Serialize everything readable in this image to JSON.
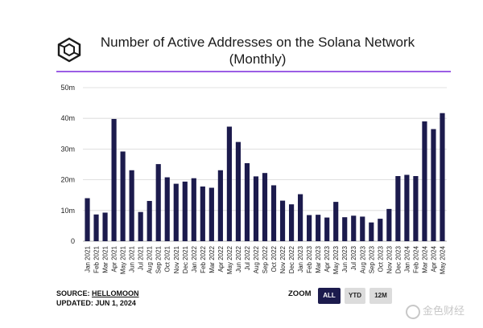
{
  "header": {
    "title_line1": "Number of Active Addresses on the Solana Network",
    "title_line2": "(Monthly)"
  },
  "footer": {
    "source_label": "SOURCE:",
    "source_name": "HELLOMOON",
    "updated_label": "UPDATED: JUN 1, 2024"
  },
  "zoom": {
    "label": "ZOOM",
    "buttons": [
      "ALL",
      "YTD",
      "12M"
    ],
    "active": "ALL"
  },
  "watermark": {
    "text": "金色财经"
  },
  "colors": {
    "bar": "#1c1b4d",
    "accent_rule": "#9b5de5",
    "grid": "#d6d6d6"
  },
  "chart_data": {
    "type": "bar",
    "title": "Number of Active Addresses on the Solana Network (Monthly)",
    "xlabel": "",
    "ylabel": "",
    "ylim": [
      0,
      50
    ],
    "y_ticks": [
      0,
      10,
      20,
      30,
      40,
      50
    ],
    "y_tick_labels": [
      "0",
      "10m",
      "20m",
      "30m",
      "40m",
      "50m"
    ],
    "grid": true,
    "categories": [
      "Jan 2021",
      "Feb 2021",
      "Mar 2021",
      "Apr 2021",
      "May 2021",
      "Jun 2021",
      "Jul 2021",
      "Aug 2021",
      "Sep 2021",
      "Oct 2021",
      "Nov 2021",
      "Dec 2021",
      "Jan 2022",
      "Feb 2022",
      "Mar 2022",
      "Apr 2022",
      "May 2022",
      "Jun 2022",
      "Jul 2022",
      "Aug 2022",
      "Sep 2022",
      "Oct 2022",
      "Nov 2022",
      "Dec 2022",
      "Jan 2023",
      "Feb 2023",
      "Mar 2023",
      "Apr 2023",
      "May 2023",
      "Jun 2023",
      "Jul 2023",
      "Aug 2023",
      "Sep 2023",
      "Oct 2023",
      "Nov 2023",
      "Dec 2023",
      "Jan 2024",
      "Feb 2024",
      "Mar 2024",
      "Apr 2024",
      "May 2024"
    ],
    "values": [
      14,
      8.7,
      9.3,
      39.8,
      29.2,
      23.1,
      9.5,
      13.1,
      25.1,
      20.8,
      18.7,
      19.4,
      20.5,
      17.8,
      17.4,
      23.1,
      37.3,
      32.3,
      25.4,
      21.1,
      22.2,
      18.2,
      13.2,
      12,
      15.3,
      8.5,
      8.6,
      7.7,
      12.8,
      7.8,
      8.3,
      8,
      6.1,
      7.3,
      10.5,
      21.2,
      21.6,
      21.2,
      39,
      36.5,
      41.7
    ]
  }
}
